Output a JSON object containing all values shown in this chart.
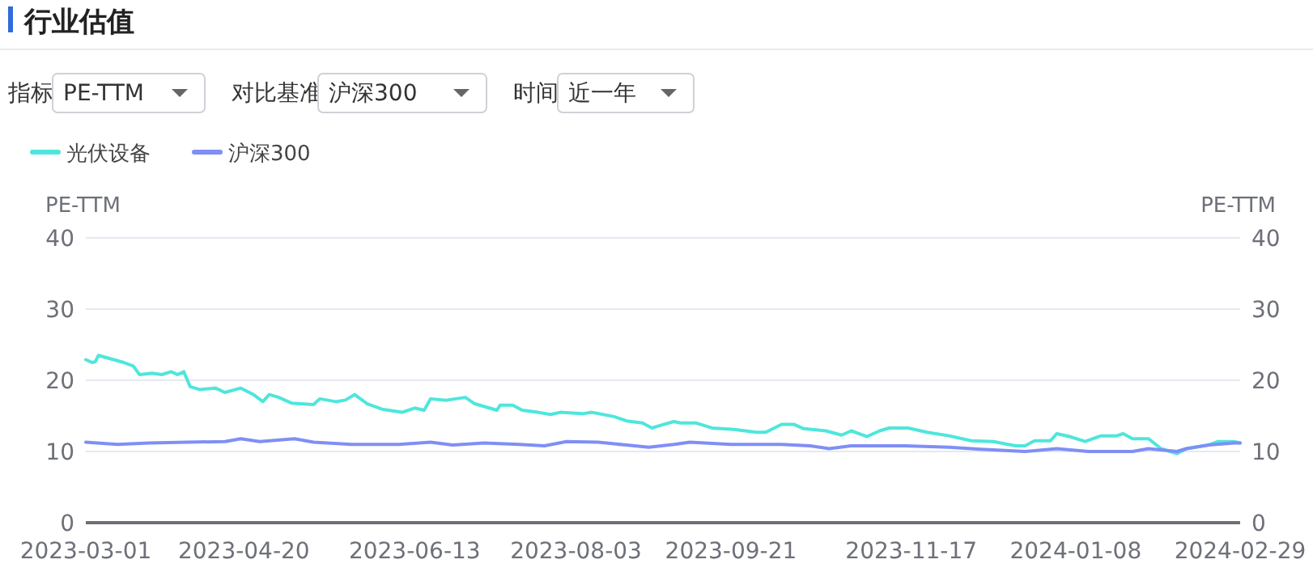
{
  "chart_data": {
    "type": "line",
    "title": "行业估值",
    "annotations": [
      "指标",
      "PE-TTM",
      "对比基准",
      "沪深300",
      "时间",
      "近一年"
    ],
    "ylabel": "PE-TTM",
    "y2label": "PE-TTM",
    "xlim": [
      "2023-03-01",
      "2024-02-29"
    ],
    "xticks": [
      {
        "value": "2023-03-01",
        "label": "2023-03-01"
      },
      {
        "value": "2023-04-20",
        "label": "2023-04-20"
      },
      {
        "value": "2023-06-13",
        "label": "2023-06-13"
      },
      {
        "value": "2023-08-03",
        "label": "2023-08-03"
      },
      {
        "value": "2023-09-21",
        "label": "2023-09-21"
      },
      {
        "value": "2023-11-17",
        "label": "2023-11-17"
      },
      {
        "value": "2024-01-08",
        "label": "2024-01-08"
      },
      {
        "value": "2024-02-29",
        "label": "2024-02-29"
      }
    ],
    "ylim": [
      0,
      40
    ],
    "yticks": [
      0,
      10,
      20,
      30,
      40
    ],
    "y2lim": [
      0,
      40
    ],
    "y2ticks": [
      0,
      10,
      20,
      30,
      40
    ],
    "grid": "y",
    "legend": "top left",
    "series": [
      {
        "name": "光伏设备",
        "color": "#4ee6dc",
        "x": [
          "2023-03-01",
          "2023-03-03",
          "2023-03-04",
          "2023-03-05",
          "2023-03-13",
          "2023-03-16",
          "2023-03-18",
          "2023-03-22",
          "2023-03-25",
          "2023-03-28",
          "2023-03-30",
          "2023-04-01",
          "2023-04-03",
          "2023-04-06",
          "2023-04-11",
          "2023-04-14",
          "2023-04-19",
          "2023-04-23",
          "2023-04-26",
          "2023-04-28",
          "2023-05-01",
          "2023-05-05",
          "2023-05-12",
          "2023-05-14",
          "2023-05-19",
          "2023-05-22",
          "2023-05-25",
          "2023-05-29",
          "2023-06-03",
          "2023-06-09",
          "2023-06-13",
          "2023-06-16",
          "2023-06-18",
          "2023-06-23",
          "2023-06-29",
          "2023-07-02",
          "2023-07-09",
          "2023-07-10",
          "2023-07-14",
          "2023-07-17",
          "2023-07-22",
          "2023-07-26",
          "2023-07-29",
          "2023-08-05",
          "2023-08-08",
          "2023-08-15",
          "2023-08-19",
          "2023-08-24",
          "2023-08-27",
          "2023-08-30",
          "2023-09-03",
          "2023-09-05",
          "2023-09-10",
          "2023-09-15",
          "2023-09-22",
          "2023-09-29",
          "2023-10-02",
          "2023-10-07",
          "2023-10-11",
          "2023-10-14",
          "2023-10-21",
          "2023-10-26",
          "2023-10-29",
          "2023-11-03",
          "2023-11-07",
          "2023-11-10",
          "2023-11-16",
          "2023-11-22",
          "2023-11-29",
          "2023-12-06",
          "2023-12-13",
          "2023-12-20",
          "2023-12-23",
          "2023-12-26",
          "2023-12-31",
          "2024-01-02",
          "2024-01-06",
          "2024-01-11",
          "2024-01-16",
          "2024-01-21",
          "2024-01-23",
          "2024-01-26",
          "2024-01-31",
          "2024-02-04",
          "2024-02-09",
          "2024-02-12",
          "2024-02-19",
          "2024-02-22",
          "2024-02-27",
          "2024-02-29"
        ],
        "values": [
          22.9,
          22.5,
          22.6,
          23.5,
          22.5,
          22.0,
          20.8,
          21.0,
          20.8,
          21.2,
          20.8,
          21.2,
          19.1,
          18.7,
          18.9,
          18.3,
          18.9,
          18.0,
          17.0,
          18.0,
          17.6,
          16.8,
          16.6,
          17.4,
          17.0,
          17.2,
          18.0,
          16.7,
          15.9,
          15.5,
          16.1,
          15.8,
          17.4,
          17.2,
          17.6,
          16.7,
          15.8,
          16.5,
          16.5,
          15.8,
          15.5,
          15.2,
          15.5,
          15.3,
          15.5,
          14.9,
          14.3,
          14.0,
          13.3,
          13.7,
          14.2,
          14.0,
          14.0,
          13.3,
          13.1,
          12.7,
          12.7,
          13.8,
          13.8,
          13.2,
          12.9,
          12.3,
          12.9,
          12.1,
          12.9,
          13.3,
          13.3,
          12.7,
          12.2,
          11.5,
          11.4,
          10.8,
          10.8,
          11.5,
          11.5,
          12.5,
          12.1,
          11.4,
          12.2,
          12.2,
          12.5,
          11.8,
          11.8,
          10.4,
          9.7,
          10.4,
          10.9,
          11.4,
          11.4,
          11.2
        ]
      },
      {
        "name": "沪深300",
        "color": "#7f8ff5",
        "x": [
          "2023-03-01",
          "2023-03-11",
          "2023-03-21",
          "2023-04-02",
          "2023-04-14",
          "2023-04-19",
          "2023-04-25",
          "2023-05-06",
          "2023-05-12",
          "2023-05-24",
          "2023-06-08",
          "2023-06-18",
          "2023-06-25",
          "2023-07-05",
          "2023-07-16",
          "2023-07-24",
          "2023-07-31",
          "2023-08-10",
          "2023-08-19",
          "2023-08-26",
          "2023-09-03",
          "2023-09-08",
          "2023-09-21",
          "2023-10-07",
          "2023-10-16",
          "2023-10-22",
          "2023-10-29",
          "2023-11-15",
          "2023-11-29",
          "2023-12-09",
          "2023-12-23",
          "2024-01-02",
          "2024-01-12",
          "2024-01-26",
          "2024-01-31",
          "2024-02-09",
          "2024-02-12",
          "2024-02-19",
          "2024-02-27",
          "2024-02-29"
        ],
        "values": [
          11.3,
          11.0,
          11.2,
          11.3,
          11.4,
          11.8,
          11.4,
          11.8,
          11.3,
          11.0,
          11.0,
          11.3,
          10.9,
          11.2,
          11.0,
          10.8,
          11.4,
          11.3,
          10.9,
          10.6,
          11.0,
          11.3,
          11.0,
          11.0,
          10.8,
          10.4,
          10.8,
          10.8,
          10.6,
          10.3,
          10.0,
          10.4,
          10.0,
          10.0,
          10.4,
          10.0,
          10.4,
          10.9,
          11.2,
          11.2
        ]
      }
    ]
  }
}
